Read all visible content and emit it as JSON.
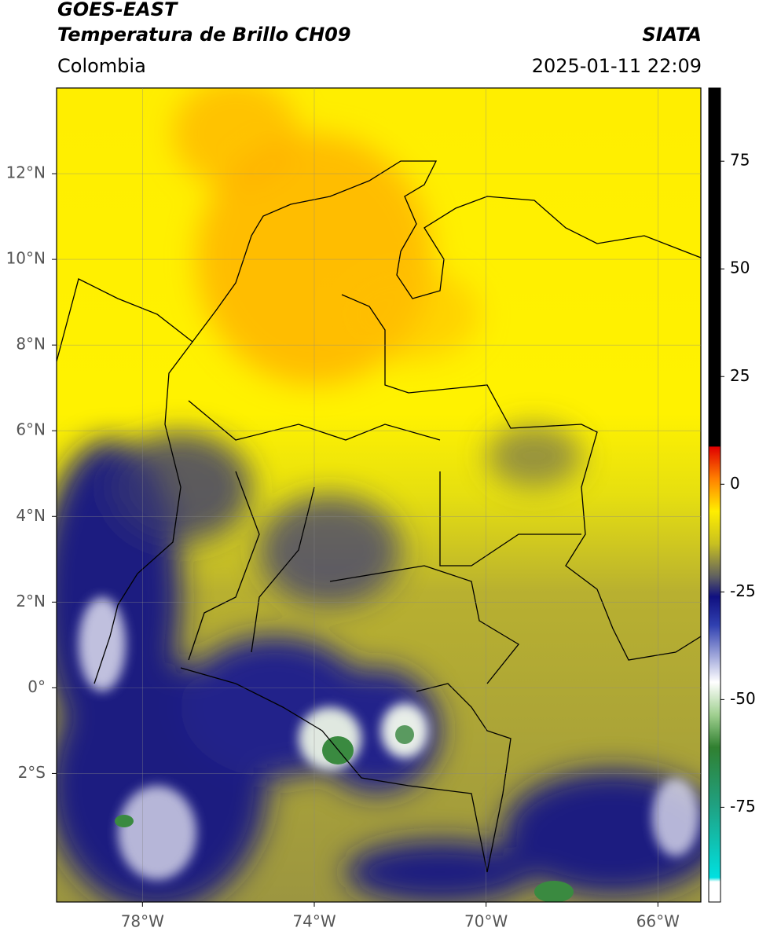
{
  "header": {
    "title": "GOES-EAST",
    "subtitle": "Temperatura de Brillo CH09",
    "source": "SIATA",
    "region": "Colombia",
    "datetime": "2025-01-11 22:09"
  },
  "map": {
    "xlim": [
      -80,
      -65
    ],
    "ylim": [
      -5,
      14
    ],
    "xticks": [
      {
        "value": -78,
        "label": "78°W"
      },
      {
        "value": -74,
        "label": "74°W"
      },
      {
        "value": -70,
        "label": "70°W"
      },
      {
        "value": -66,
        "label": "66°W"
      }
    ],
    "yticks": [
      {
        "value": 12,
        "label": "12°N"
      },
      {
        "value": 10,
        "label": "10°N"
      },
      {
        "value": 8,
        "label": "8°N"
      },
      {
        "value": 6,
        "label": "6°N"
      },
      {
        "value": 4,
        "label": "4°N"
      },
      {
        "value": 2,
        "label": "2°N"
      },
      {
        "value": 0,
        "label": "0°"
      },
      {
        "value": -2,
        "label": "2°S"
      }
    ],
    "grid": true
  },
  "colorbar": {
    "lim": [
      -97,
      92
    ],
    "ticks": [
      75,
      50,
      25,
      0,
      -25,
      -50,
      -75
    ]
  }
}
